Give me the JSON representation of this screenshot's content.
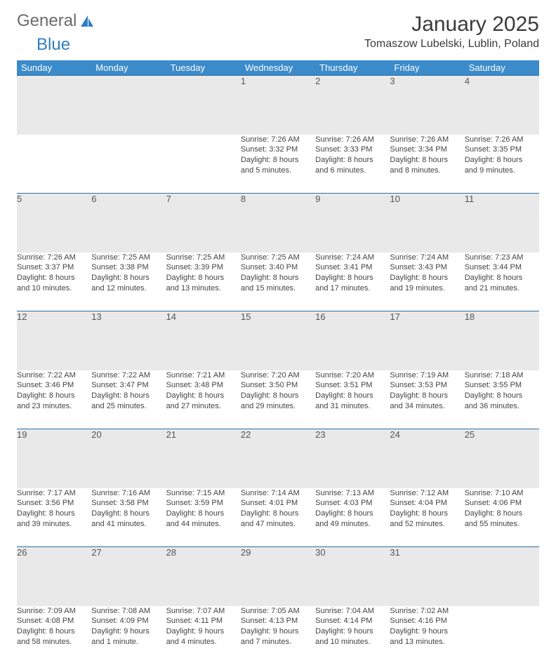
{
  "branding": {
    "logo_word1": "General",
    "logo_word2": "Blue",
    "logo_text_color": "#6b6b6b",
    "logo_accent_color": "#2f7fc2"
  },
  "header": {
    "month_title": "January 2025",
    "location": "Tomaszow Lubelski, Lublin, Poland"
  },
  "colors": {
    "header_bg": "#3b8bca",
    "header_text": "#ffffff",
    "daynum_bg": "#e9e9e9",
    "daynum_text": "#555555",
    "row_divider": "#2f6fa8",
    "body_text": "#444444",
    "page_bg": "#ffffff"
  },
  "typography": {
    "title_fontsize": 30,
    "location_fontsize": 16,
    "th_fontsize": 13,
    "cell_fontsize": 11
  },
  "day_names": [
    "Sunday",
    "Monday",
    "Tuesday",
    "Wednesday",
    "Thursday",
    "Friday",
    "Saturday"
  ],
  "weeks": [
    [
      null,
      null,
      null,
      {
        "num": "1",
        "sunrise": "Sunrise: 7:26 AM",
        "sunset": "Sunset: 3:32 PM",
        "daylight1": "Daylight: 8 hours",
        "daylight2": "and 5 minutes."
      },
      {
        "num": "2",
        "sunrise": "Sunrise: 7:26 AM",
        "sunset": "Sunset: 3:33 PM",
        "daylight1": "Daylight: 8 hours",
        "daylight2": "and 6 minutes."
      },
      {
        "num": "3",
        "sunrise": "Sunrise: 7:26 AM",
        "sunset": "Sunset: 3:34 PM",
        "daylight1": "Daylight: 8 hours",
        "daylight2": "and 8 minutes."
      },
      {
        "num": "4",
        "sunrise": "Sunrise: 7:26 AM",
        "sunset": "Sunset: 3:35 PM",
        "daylight1": "Daylight: 8 hours",
        "daylight2": "and 9 minutes."
      }
    ],
    [
      {
        "num": "5",
        "sunrise": "Sunrise: 7:26 AM",
        "sunset": "Sunset: 3:37 PM",
        "daylight1": "Daylight: 8 hours",
        "daylight2": "and 10 minutes."
      },
      {
        "num": "6",
        "sunrise": "Sunrise: 7:25 AM",
        "sunset": "Sunset: 3:38 PM",
        "daylight1": "Daylight: 8 hours",
        "daylight2": "and 12 minutes."
      },
      {
        "num": "7",
        "sunrise": "Sunrise: 7:25 AM",
        "sunset": "Sunset: 3:39 PM",
        "daylight1": "Daylight: 8 hours",
        "daylight2": "and 13 minutes."
      },
      {
        "num": "8",
        "sunrise": "Sunrise: 7:25 AM",
        "sunset": "Sunset: 3:40 PM",
        "daylight1": "Daylight: 8 hours",
        "daylight2": "and 15 minutes."
      },
      {
        "num": "9",
        "sunrise": "Sunrise: 7:24 AM",
        "sunset": "Sunset: 3:41 PM",
        "daylight1": "Daylight: 8 hours",
        "daylight2": "and 17 minutes."
      },
      {
        "num": "10",
        "sunrise": "Sunrise: 7:24 AM",
        "sunset": "Sunset: 3:43 PM",
        "daylight1": "Daylight: 8 hours",
        "daylight2": "and 19 minutes."
      },
      {
        "num": "11",
        "sunrise": "Sunrise: 7:23 AM",
        "sunset": "Sunset: 3:44 PM",
        "daylight1": "Daylight: 8 hours",
        "daylight2": "and 21 minutes."
      }
    ],
    [
      {
        "num": "12",
        "sunrise": "Sunrise: 7:22 AM",
        "sunset": "Sunset: 3:46 PM",
        "daylight1": "Daylight: 8 hours",
        "daylight2": "and 23 minutes."
      },
      {
        "num": "13",
        "sunrise": "Sunrise: 7:22 AM",
        "sunset": "Sunset: 3:47 PM",
        "daylight1": "Daylight: 8 hours",
        "daylight2": "and 25 minutes."
      },
      {
        "num": "14",
        "sunrise": "Sunrise: 7:21 AM",
        "sunset": "Sunset: 3:48 PM",
        "daylight1": "Daylight: 8 hours",
        "daylight2": "and 27 minutes."
      },
      {
        "num": "15",
        "sunrise": "Sunrise: 7:20 AM",
        "sunset": "Sunset: 3:50 PM",
        "daylight1": "Daylight: 8 hours",
        "daylight2": "and 29 minutes."
      },
      {
        "num": "16",
        "sunrise": "Sunrise: 7:20 AM",
        "sunset": "Sunset: 3:51 PM",
        "daylight1": "Daylight: 8 hours",
        "daylight2": "and 31 minutes."
      },
      {
        "num": "17",
        "sunrise": "Sunrise: 7:19 AM",
        "sunset": "Sunset: 3:53 PM",
        "daylight1": "Daylight: 8 hours",
        "daylight2": "and 34 minutes."
      },
      {
        "num": "18",
        "sunrise": "Sunrise: 7:18 AM",
        "sunset": "Sunset: 3:55 PM",
        "daylight1": "Daylight: 8 hours",
        "daylight2": "and 36 minutes."
      }
    ],
    [
      {
        "num": "19",
        "sunrise": "Sunrise: 7:17 AM",
        "sunset": "Sunset: 3:56 PM",
        "daylight1": "Daylight: 8 hours",
        "daylight2": "and 39 minutes."
      },
      {
        "num": "20",
        "sunrise": "Sunrise: 7:16 AM",
        "sunset": "Sunset: 3:58 PM",
        "daylight1": "Daylight: 8 hours",
        "daylight2": "and 41 minutes."
      },
      {
        "num": "21",
        "sunrise": "Sunrise: 7:15 AM",
        "sunset": "Sunset: 3:59 PM",
        "daylight1": "Daylight: 8 hours",
        "daylight2": "and 44 minutes."
      },
      {
        "num": "22",
        "sunrise": "Sunrise: 7:14 AM",
        "sunset": "Sunset: 4:01 PM",
        "daylight1": "Daylight: 8 hours",
        "daylight2": "and 47 minutes."
      },
      {
        "num": "23",
        "sunrise": "Sunrise: 7:13 AM",
        "sunset": "Sunset: 4:03 PM",
        "daylight1": "Daylight: 8 hours",
        "daylight2": "and 49 minutes."
      },
      {
        "num": "24",
        "sunrise": "Sunrise: 7:12 AM",
        "sunset": "Sunset: 4:04 PM",
        "daylight1": "Daylight: 8 hours",
        "daylight2": "and 52 minutes."
      },
      {
        "num": "25",
        "sunrise": "Sunrise: 7:10 AM",
        "sunset": "Sunset: 4:06 PM",
        "daylight1": "Daylight: 8 hours",
        "daylight2": "and 55 minutes."
      }
    ],
    [
      {
        "num": "26",
        "sunrise": "Sunrise: 7:09 AM",
        "sunset": "Sunset: 4:08 PM",
        "daylight1": "Daylight: 8 hours",
        "daylight2": "and 58 minutes."
      },
      {
        "num": "27",
        "sunrise": "Sunrise: 7:08 AM",
        "sunset": "Sunset: 4:09 PM",
        "daylight1": "Daylight: 9 hours",
        "daylight2": "and 1 minute."
      },
      {
        "num": "28",
        "sunrise": "Sunrise: 7:07 AM",
        "sunset": "Sunset: 4:11 PM",
        "daylight1": "Daylight: 9 hours",
        "daylight2": "and 4 minutes."
      },
      {
        "num": "29",
        "sunrise": "Sunrise: 7:05 AM",
        "sunset": "Sunset: 4:13 PM",
        "daylight1": "Daylight: 9 hours",
        "daylight2": "and 7 minutes."
      },
      {
        "num": "30",
        "sunrise": "Sunrise: 7:04 AM",
        "sunset": "Sunset: 4:14 PM",
        "daylight1": "Daylight: 9 hours",
        "daylight2": "and 10 minutes."
      },
      {
        "num": "31",
        "sunrise": "Sunrise: 7:02 AM",
        "sunset": "Sunset: 4:16 PM",
        "daylight1": "Daylight: 9 hours",
        "daylight2": "and 13 minutes."
      },
      null
    ]
  ]
}
